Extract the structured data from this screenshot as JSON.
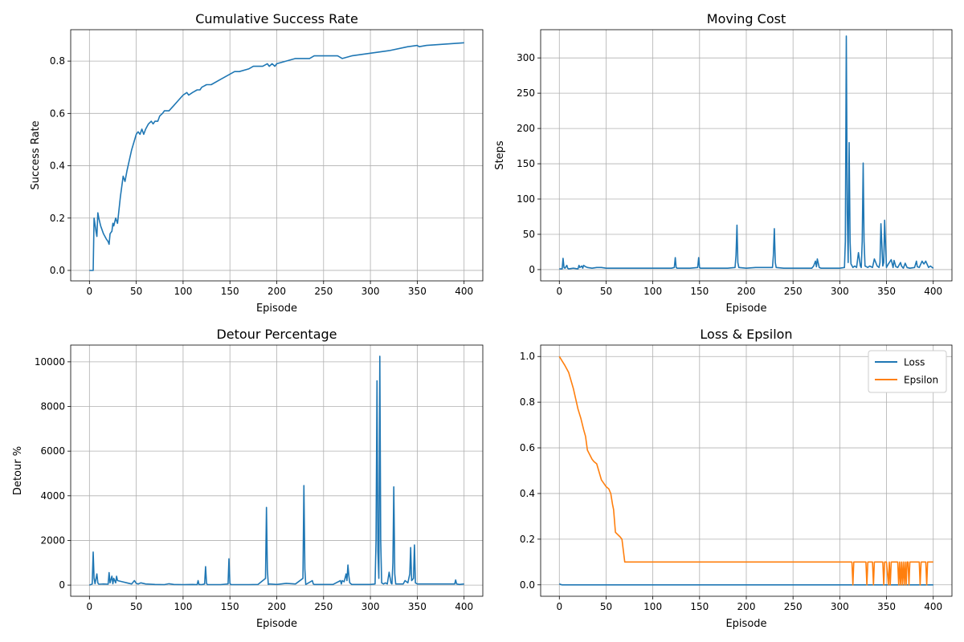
{
  "chart_data": [
    {
      "type": "line",
      "title": "Cumulative Success Rate",
      "xlabel": "Episode",
      "ylabel": "Success Rate",
      "xlim": [
        -20,
        420
      ],
      "ylim": [
        -0.04,
        0.92
      ],
      "xticks": [
        0,
        50,
        100,
        150,
        200,
        250,
        300,
        350,
        400
      ],
      "yticks": [
        0.0,
        0.2,
        0.4,
        0.6,
        0.8
      ],
      "ytick_labels": [
        "0.0",
        "0.2",
        "0.4",
        "0.6",
        "0.8"
      ],
      "grid": true,
      "series": [
        {
          "color": "#1f77b4",
          "x": [
            0,
            4,
            5,
            7,
            8,
            9,
            10,
            12,
            15,
            18,
            20,
            21,
            22,
            24,
            25,
            26,
            28,
            30,
            33,
            36,
            38,
            40,
            45,
            50,
            52,
            54,
            56,
            58,
            60,
            63,
            66,
            68,
            70,
            73,
            75,
            78,
            80,
            82,
            85,
            90,
            95,
            100,
            104,
            106,
            110,
            115,
            118,
            120,
            125,
            127,
            130,
            140,
            150,
            155,
            158,
            160,
            170,
            175,
            180,
            185,
            190,
            192,
            195,
            198,
            200,
            210,
            220,
            225,
            230,
            232,
            235,
            240,
            245,
            250,
            255,
            260,
            265,
            270,
            280,
            300,
            320,
            340,
            350,
            352,
            360,
            380,
            400
          ],
          "y": [
            0.0,
            0.0,
            0.2,
            0.15,
            0.13,
            0.22,
            0.2,
            0.17,
            0.14,
            0.12,
            0.11,
            0.1,
            0.14,
            0.15,
            0.18,
            0.17,
            0.2,
            0.18,
            0.28,
            0.36,
            0.34,
            0.38,
            0.46,
            0.52,
            0.53,
            0.52,
            0.54,
            0.52,
            0.54,
            0.56,
            0.57,
            0.56,
            0.57,
            0.57,
            0.59,
            0.6,
            0.61,
            0.61,
            0.61,
            0.63,
            0.65,
            0.67,
            0.68,
            0.67,
            0.68,
            0.69,
            0.69,
            0.7,
            0.71,
            0.71,
            0.71,
            0.73,
            0.75,
            0.76,
            0.76,
            0.76,
            0.77,
            0.78,
            0.78,
            0.78,
            0.79,
            0.78,
            0.79,
            0.78,
            0.79,
            0.8,
            0.81,
            0.81,
            0.81,
            0.81,
            0.81,
            0.82,
            0.82,
            0.82,
            0.82,
            0.82,
            0.82,
            0.81,
            0.82,
            0.83,
            0.84,
            0.855,
            0.86,
            0.855,
            0.86,
            0.865,
            0.87
          ]
        }
      ]
    },
    {
      "type": "line",
      "title": "Moving Cost",
      "xlabel": "Episode",
      "ylabel": "Steps",
      "xlim": [
        -20,
        420
      ],
      "ylim": [
        -16,
        340
      ],
      "xticks": [
        0,
        50,
        100,
        150,
        200,
        250,
        300,
        350,
        400
      ],
      "yticks": [
        0,
        50,
        100,
        150,
        200,
        250,
        300
      ],
      "ytick_labels": [
        "0",
        "50",
        "100",
        "150",
        "200",
        "250",
        "300"
      ],
      "grid": true,
      "series": [
        {
          "color": "#1f77b4",
          "x": [
            0,
            3,
            4,
            5,
            6,
            8,
            9,
            10,
            15,
            20,
            21,
            22,
            24,
            25,
            26,
            28,
            30,
            35,
            40,
            45,
            50,
            60,
            70,
            80,
            90,
            100,
            110,
            120,
            123,
            124,
            125,
            126,
            130,
            140,
            148,
            149,
            150,
            151,
            160,
            170,
            180,
            188,
            189,
            190,
            191,
            192,
            200,
            210,
            220,
            228,
            229,
            230,
            231,
            232,
            240,
            250,
            260,
            270,
            272,
            274,
            275,
            276,
            278,
            280,
            290,
            300,
            305,
            306,
            307,
            308,
            309,
            310,
            311,
            312,
            314,
            316,
            318,
            320,
            322,
            323,
            324,
            325,
            326,
            327,
            330,
            332,
            335,
            337,
            340,
            342,
            343,
            344,
            346,
            347,
            348,
            350,
            352,
            355,
            357,
            358,
            360,
            362,
            365,
            366,
            368,
            370,
            372,
            375,
            380,
            382,
            383,
            385,
            388,
            390,
            392,
            395,
            397,
            400
          ],
          "y": [
            1,
            1,
            16,
            3,
            2,
            6,
            2,
            1,
            2,
            1,
            6,
            3,
            5,
            2,
            6,
            4,
            3,
            2,
            3,
            3,
            2,
            2,
            2,
            2,
            2,
            2,
            2,
            2,
            3,
            17,
            3,
            2,
            2,
            2,
            3,
            17,
            3,
            2,
            2,
            2,
            2,
            3,
            20,
            63,
            10,
            3,
            2,
            3,
            3,
            3,
            20,
            58,
            10,
            3,
            2,
            2,
            2,
            2,
            5,
            12,
            4,
            15,
            3,
            2,
            2,
            2,
            3,
            40,
            331,
            80,
            10,
            180,
            40,
            8,
            3,
            5,
            3,
            24,
            5,
            3,
            40,
            151,
            40,
            5,
            3,
            5,
            3,
            15,
            5,
            3,
            10,
            65,
            5,
            10,
            70,
            3,
            8,
            14,
            3,
            13,
            4,
            3,
            10,
            5,
            2,
            9,
            3,
            2,
            3,
            12,
            4,
            3,
            12,
            8,
            12,
            3,
            5,
            2
          ]
        }
      ]
    },
    {
      "type": "line",
      "title": "Detour Percentage",
      "xlabel": "Episode",
      "ylabel": "Detour %",
      "xlim": [
        -20,
        420
      ],
      "ylim": [
        -500,
        10750
      ],
      "xticks": [
        0,
        50,
        100,
        150,
        200,
        250,
        300,
        350,
        400
      ],
      "yticks": [
        0,
        2000,
        4000,
        6000,
        8000,
        10000
      ],
      "ytick_labels": [
        "0",
        "2000",
        "4000",
        "6000",
        "8000",
        "10000"
      ],
      "grid": true,
      "series": [
        {
          "color": "#1f77b4",
          "x": [
            0,
            3,
            4,
            5,
            6,
            8,
            9,
            10,
            15,
            20,
            21,
            22,
            24,
            25,
            26,
            28,
            29,
            30,
            35,
            40,
            45,
            48,
            50,
            52,
            55,
            60,
            70,
            80,
            85,
            90,
            100,
            110,
            115,
            116,
            117,
            120,
            123,
            124,
            125,
            126,
            130,
            140,
            148,
            149,
            150,
            151,
            160,
            170,
            180,
            188,
            189,
            190,
            191,
            192,
            200,
            210,
            220,
            228,
            229,
            230,
            231,
            232,
            238,
            239,
            240,
            250,
            260,
            268,
            269,
            270,
            272,
            274,
            275,
            276,
            277,
            278,
            280,
            290,
            300,
            305,
            306,
            307,
            308,
            309,
            310,
            311,
            312,
            314,
            316,
            318,
            320,
            322,
            323,
            324,
            325,
            326,
            327,
            330,
            335,
            337,
            340,
            342,
            343,
            344,
            346,
            347,
            348,
            350,
            355,
            360,
            365,
            370,
            375,
            380,
            385,
            390,
            391,
            392,
            395,
            400
          ],
          "y": [
            0,
            50,
            1480,
            300,
            60,
            500,
            100,
            40,
            50,
            40,
            560,
            100,
            400,
            60,
            300,
            100,
            400,
            200,
            150,
            100,
            50,
            200,
            80,
            50,
            100,
            50,
            30,
            20,
            60,
            30,
            20,
            30,
            20,
            200,
            30,
            20,
            50,
            830,
            80,
            20,
            20,
            20,
            50,
            1180,
            80,
            20,
            20,
            20,
            30,
            300,
            3480,
            700,
            30,
            50,
            30,
            80,
            50,
            300,
            4460,
            700,
            30,
            50,
            200,
            50,
            30,
            30,
            30,
            200,
            50,
            200,
            150,
            500,
            200,
            900,
            400,
            100,
            30,
            30,
            30,
            50,
            2000,
            9150,
            1500,
            300,
            10250,
            2000,
            100,
            50,
            100,
            50,
            580,
            100,
            50,
            1000,
            4400,
            500,
            50,
            50,
            50,
            200,
            100,
            500,
            1680,
            200,
            300,
            1800,
            100,
            50,
            50,
            50,
            50,
            50,
            50,
            50,
            50,
            50,
            230,
            50,
            30,
            50
          ]
        }
      ]
    },
    {
      "type": "line",
      "title": "Loss & Epsilon",
      "xlabel": "Episode",
      "ylabel": "",
      "xlim": [
        -20,
        420
      ],
      "ylim": [
        -0.05,
        1.05
      ],
      "xticks": [
        0,
        50,
        100,
        150,
        200,
        250,
        300,
        350,
        400
      ],
      "yticks": [
        0.0,
        0.2,
        0.4,
        0.6,
        0.8,
        1.0
      ],
      "ytick_labels": [
        "0.0",
        "0.2",
        "0.4",
        "0.6",
        "0.8",
        "1.0"
      ],
      "grid": true,
      "legend": "top-right",
      "series": [
        {
          "name": "Loss",
          "color": "#1f77b4",
          "x": [
            0,
            1,
            3,
            400
          ],
          "y": [
            0.005,
            0.002,
            0.0,
            0.0
          ]
        },
        {
          "name": "Epsilon",
          "color": "#ff7f0e",
          "x": [
            0,
            3,
            6,
            10,
            15,
            20,
            23,
            26,
            28,
            30,
            35,
            37,
            40,
            45,
            50,
            53,
            55,
            57,
            58,
            60,
            65,
            67,
            70,
            80,
            100,
            200,
            300,
            313,
            314,
            315,
            316,
            320,
            328,
            329,
            330,
            331,
            335,
            336,
            337,
            340,
            346,
            347,
            348,
            350,
            352,
            353,
            354,
            355,
            358,
            360,
            362,
            363,
            364,
            365,
            366,
            367,
            368,
            369,
            370,
            371,
            372,
            373,
            374,
            375,
            376,
            380,
            385,
            386,
            387,
            388,
            390,
            392,
            393,
            394,
            395,
            400
          ],
          "y": [
            1.0,
            0.98,
            0.96,
            0.93,
            0.86,
            0.77,
            0.73,
            0.68,
            0.65,
            0.59,
            0.55,
            0.54,
            0.53,
            0.46,
            0.43,
            0.42,
            0.4,
            0.35,
            0.33,
            0.23,
            0.21,
            0.2,
            0.1,
            0.1,
            0.1,
            0.1,
            0.1,
            0.1,
            0.0,
            0.1,
            0.1,
            0.1,
            0.1,
            0.0,
            0.1,
            0.1,
            0.1,
            0.0,
            0.1,
            0.1,
            0.1,
            0.0,
            0.1,
            0.1,
            0.0,
            0.1,
            0.0,
            0.1,
            0.1,
            0.1,
            0.1,
            0.0,
            0.1,
            0.0,
            0.1,
            0.0,
            0.1,
            0.0,
            0.1,
            0.0,
            0.1,
            0.1,
            0.0,
            0.1,
            0.1,
            0.1,
            0.1,
            0.0,
            0.1,
            0.1,
            0.1,
            0.1,
            0.0,
            0.1,
            0.1,
            0.1
          ]
        }
      ]
    }
  ]
}
